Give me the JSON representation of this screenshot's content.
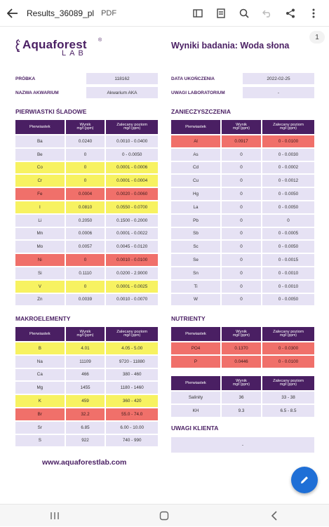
{
  "topbar": {
    "filename": "Results_36089_pl",
    "filetype": "PDF",
    "icons": [
      "back-arrow",
      "thumbnail-view",
      "document-info",
      "search",
      "undo",
      "share",
      "more-vert"
    ]
  },
  "page_indicator": "1",
  "logo": {
    "brand": "Aquaforest",
    "sub": "LAB",
    "registered": "®"
  },
  "title": "Wyniki badania: Woda słona",
  "meta": {
    "left": [
      {
        "label": "PRÓBKA",
        "value": "118162"
      },
      {
        "label": "NAZWA AKWARIUM",
        "value": "Akwarium AKA"
      }
    ],
    "right": [
      {
        "label": "DATA UKOŃCZENIA",
        "value": "2022-02-25"
      },
      {
        "label": "UWAGI LABORATORIUM",
        "value": "-"
      }
    ]
  },
  "headers": {
    "element": "Pierwiastek",
    "result": "Wynik",
    "result_unit": "mg/l (ppm)",
    "recommended": "Zalecany poziom",
    "recommended_unit": "mg/l (ppm)"
  },
  "sections": {
    "trace": {
      "title": "PIERWIASTKI ŚLADOWE",
      "rows": [
        {
          "el": "Ba",
          "val": "0.0240",
          "rec": "0.0010 - 0.0400",
          "status": "ok"
        },
        {
          "el": "Be",
          "val": "0",
          "rec": "0 - 0.0050",
          "status": "ok"
        },
        {
          "el": "Co",
          "val": "0",
          "rec": "0.0001 - 0.0006",
          "status": "low"
        },
        {
          "el": "Cr",
          "val": "0",
          "rec": "0.0001 - 0.0004",
          "status": "low"
        },
        {
          "el": "Fe",
          "val": "0.0004",
          "rec": "0.0020 - 0.0060",
          "status": "bad"
        },
        {
          "el": "I",
          "val": "0.0810",
          "rec": "0.0550 - 0.0700",
          "status": "low"
        },
        {
          "el": "Li",
          "val": "0.2050",
          "rec": "0.1500 - 0.2000",
          "status": "ok"
        },
        {
          "el": "Mn",
          "val": "0.0006",
          "rec": "0.0001 - 0.0022",
          "status": "ok"
        },
        {
          "el": "Mo",
          "val": "0.0057",
          "rec": "0.0045 - 0.0120",
          "status": "ok"
        },
        {
          "el": "Ni",
          "val": "0",
          "rec": "0.0010 - 0.0100",
          "status": "bad"
        },
        {
          "el": "Si",
          "val": "0.1110",
          "rec": "0.0200 - 2.9000",
          "status": "ok"
        },
        {
          "el": "V",
          "val": "0",
          "rec": "0.0001 - 0.0025",
          "status": "low"
        },
        {
          "el": "Zn",
          "val": "0.0039",
          "rec": "0.0010 - 0.0070",
          "status": "ok"
        }
      ]
    },
    "pollution": {
      "title": "ZANIECZYSZCZENIA",
      "rows": [
        {
          "el": "Al",
          "val": "0.0917",
          "rec": "0 - 0.0100",
          "status": "bad"
        },
        {
          "el": "As",
          "val": "0",
          "rec": "0 - 0.0030",
          "status": "ok"
        },
        {
          "el": "Cd",
          "val": "0",
          "rec": "0 - 0.0002",
          "status": "ok"
        },
        {
          "el": "Cu",
          "val": "0",
          "rec": "0 - 0.0012",
          "status": "ok"
        },
        {
          "el": "Hg",
          "val": "0",
          "rec": "0 - 0.0050",
          "status": "ok"
        },
        {
          "el": "La",
          "val": "0",
          "rec": "0 - 0.0050",
          "status": "ok"
        },
        {
          "el": "Pb",
          "val": "0",
          "rec": "0",
          "status": "ok"
        },
        {
          "el": "Sb",
          "val": "0",
          "rec": "0 - 0.0005",
          "status": "ok"
        },
        {
          "el": "Sc",
          "val": "0",
          "rec": "0 - 0.0050",
          "status": "ok"
        },
        {
          "el": "Se",
          "val": "0",
          "rec": "0 - 0.0015",
          "status": "ok"
        },
        {
          "el": "Sn",
          "val": "0",
          "rec": "0 - 0.0010",
          "status": "ok"
        },
        {
          "el": "Ti",
          "val": "0",
          "rec": "0 - 0.0010",
          "status": "ok"
        },
        {
          "el": "W",
          "val": "0",
          "rec": "0 - 0.0050",
          "status": "ok"
        }
      ]
    },
    "macro": {
      "title": "MAKROELEMENTY",
      "rows": [
        {
          "el": "B",
          "val": "4.01",
          "rec": "4.05 - 5.00",
          "status": "low"
        },
        {
          "el": "Na",
          "val": "11109",
          "rec": "9720 - 11880",
          "status": "ok"
        },
        {
          "el": "Ca",
          "val": "466",
          "rec": "380 - 460",
          "status": "ok"
        },
        {
          "el": "Mg",
          "val": "1455",
          "rec": "1180 - 1460",
          "status": "ok"
        },
        {
          "el": "K",
          "val": "459",
          "rec": "360 - 420",
          "status": "low"
        },
        {
          "el": "Br",
          "val": "32.2",
          "rec": "55.0 - 74.0",
          "status": "bad"
        },
        {
          "el": "Sr",
          "val": "6.85",
          "rec": "6.00 - 10.00",
          "status": "ok"
        },
        {
          "el": "S",
          "val": "922",
          "rec": "740 - 990",
          "status": "ok"
        }
      ]
    },
    "nutrients": {
      "title": "NUTRIENTY",
      "rows": [
        {
          "el": "PO4",
          "val": "0.1370",
          "rec": "0 - 0.0300",
          "status": "bad"
        },
        {
          "el": "P",
          "val": "0.0446",
          "rec": "0 - 0.0100",
          "status": "bad"
        }
      ]
    },
    "other": {
      "rows": [
        {
          "el": "Salinity",
          "val": "36",
          "rec": "33 - 38",
          "status": "ok"
        },
        {
          "el": "KH",
          "val": "9.3",
          "rec": "6.5 - 8.5",
          "status": "ok"
        }
      ]
    },
    "client_notes": {
      "title": "UWAGI KLIENTA",
      "value": "-"
    }
  },
  "url": "www.aquaforestlab.com",
  "colors": {
    "brand": "#4a1f63",
    "cell": "#e6e2f4",
    "warning": "#f7f261",
    "alert": "#f0706a",
    "fab": "#1f6fd6"
  },
  "fab": {
    "icon": "edit-pencil"
  },
  "navbar": {
    "icons": [
      "recent-apps",
      "home",
      "back"
    ]
  }
}
